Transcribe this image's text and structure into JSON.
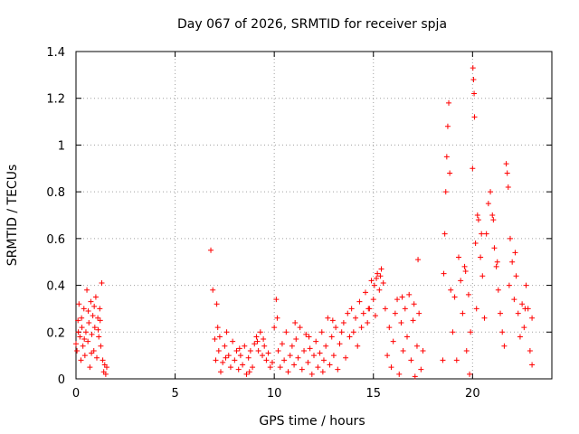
{
  "chart_data": {
    "type": "scatter",
    "title": "Day 067 of 2026, SRMTID for receiver spja",
    "xlabel": "GPS time / hours",
    "ylabel": "SRMTID / TECUs",
    "xlim": [
      0,
      24
    ],
    "ylim": [
      0,
      1.4
    ],
    "xticks": [
      0,
      5,
      10,
      15,
      20
    ],
    "xtick_labels": [
      "0",
      "5",
      "10",
      "15",
      "20"
    ],
    "yticks": [
      0,
      0.2,
      0.4,
      0.6,
      0.8,
      1.0,
      1.2,
      1.4
    ],
    "ytick_labels": [
      "0",
      "0.2",
      "0.4",
      "0.6",
      "0.8",
      "1",
      "1.2",
      "1.4"
    ],
    "grid": true,
    "marker": "plus",
    "color": "#ff0000",
    "series": [
      {
        "name": "SRMTID",
        "points": [
          [
            0.0,
            0.15
          ],
          [
            0.05,
            0.12
          ],
          [
            0.1,
            0.25
          ],
          [
            0.15,
            0.32
          ],
          [
            0.2,
            0.18
          ],
          [
            0.25,
            0.08
          ],
          [
            0.3,
            0.22
          ],
          [
            0.35,
            0.14
          ],
          [
            0.4,
            0.3
          ],
          [
            0.45,
            0.1
          ],
          [
            0.5,
            0.2
          ],
          [
            0.55,
            0.38
          ],
          [
            0.6,
            0.16
          ],
          [
            0.65,
            0.24
          ],
          [
            0.7,
            0.05
          ],
          [
            0.75,
            0.33
          ],
          [
            0.8,
            0.19
          ],
          [
            0.85,
            0.27
          ],
          [
            0.9,
            0.12
          ],
          [
            0.95,
            0.22
          ],
          [
            1.0,
            0.35
          ],
          [
            1.05,
            0.09
          ],
          [
            1.1,
            0.26
          ],
          [
            1.15,
            0.18
          ],
          [
            1.2,
            0.3
          ],
          [
            1.25,
            0.14
          ],
          [
            1.3,
            0.41
          ],
          [
            1.35,
            0.08
          ],
          [
            1.4,
            0.03
          ],
          [
            1.45,
            0.06
          ],
          [
            1.5,
            0.02
          ],
          [
            1.55,
            0.05
          ],
          [
            0.12,
            0.2
          ],
          [
            0.28,
            0.26
          ],
          [
            0.42,
            0.17
          ],
          [
            0.62,
            0.29
          ],
          [
            0.78,
            0.11
          ],
          [
            0.92,
            0.31
          ],
          [
            1.12,
            0.21
          ],
          [
            1.22,
            0.25
          ],
          [
            6.8,
            0.55
          ],
          [
            6.9,
            0.38
          ],
          [
            7.0,
            0.17
          ],
          [
            7.05,
            0.08
          ],
          [
            7.1,
            0.32
          ],
          [
            7.15,
            0.22
          ],
          [
            7.2,
            0.12
          ],
          [
            7.3,
            0.03
          ],
          [
            7.4,
            0.07
          ],
          [
            7.5,
            0.14
          ],
          [
            7.6,
            0.2
          ],
          [
            7.7,
            0.1
          ],
          [
            7.8,
            0.05
          ],
          [
            7.9,
            0.16
          ],
          [
            8.0,
            0.08
          ],
          [
            8.1,
            0.12
          ],
          [
            8.2,
            0.04
          ],
          [
            8.3,
            0.1
          ],
          [
            8.4,
            0.06
          ],
          [
            8.5,
            0.14
          ],
          [
            8.6,
            0.02
          ],
          [
            8.7,
            0.09
          ],
          [
            8.8,
            0.12
          ],
          [
            8.9,
            0.05
          ],
          [
            9.0,
            0.15
          ],
          [
            9.1,
            0.18
          ],
          [
            9.2,
            0.12
          ],
          [
            9.3,
            0.2
          ],
          [
            9.4,
            0.1
          ],
          [
            9.5,
            0.14
          ],
          [
            9.6,
            0.08
          ],
          [
            9.7,
            0.11
          ],
          [
            9.8,
            0.05
          ],
          [
            9.9,
            0.07
          ],
          [
            7.25,
            0.18
          ],
          [
            7.55,
            0.09
          ],
          [
            8.25,
            0.13
          ],
          [
            8.75,
            0.03
          ],
          [
            9.15,
            0.16
          ],
          [
            9.45,
            0.17
          ],
          [
            10.0,
            0.22
          ],
          [
            10.1,
            0.34
          ],
          [
            10.15,
            0.26
          ],
          [
            10.2,
            0.12
          ],
          [
            10.3,
            0.05
          ],
          [
            10.4,
            0.15
          ],
          [
            10.5,
            0.08
          ],
          [
            10.6,
            0.2
          ],
          [
            10.7,
            0.03
          ],
          [
            10.8,
            0.1
          ],
          [
            10.9,
            0.14
          ],
          [
            11.0,
            0.06
          ],
          [
            11.1,
            0.17
          ],
          [
            11.2,
            0.09
          ],
          [
            11.3,
            0.22
          ],
          [
            11.4,
            0.04
          ],
          [
            11.5,
            0.12
          ],
          [
            11.6,
            0.19
          ],
          [
            11.7,
            0.07
          ],
          [
            11.8,
            0.13
          ],
          [
            11.9,
            0.02
          ],
          [
            12.0,
            0.1
          ],
          [
            12.1,
            0.16
          ],
          [
            12.2,
            0.05
          ],
          [
            12.3,
            0.11
          ],
          [
            12.4,
            0.2
          ],
          [
            12.5,
            0.08
          ],
          [
            12.6,
            0.14
          ],
          [
            12.7,
            0.26
          ],
          [
            12.8,
            0.06
          ],
          [
            12.9,
            0.18
          ],
          [
            13.0,
            0.1
          ],
          [
            13.1,
            0.22
          ],
          [
            13.2,
            0.04
          ],
          [
            13.3,
            0.15
          ],
          [
            13.4,
            0.2
          ],
          [
            13.5,
            0.24
          ],
          [
            13.6,
            0.09
          ],
          [
            13.7,
            0.28
          ],
          [
            13.8,
            0.18
          ],
          [
            13.9,
            0.3
          ],
          [
            11.05,
            0.24
          ],
          [
            11.75,
            0.18
          ],
          [
            12.45,
            0.03
          ],
          [
            12.95,
            0.25
          ],
          [
            14.0,
            0.2
          ],
          [
            14.1,
            0.26
          ],
          [
            14.2,
            0.14
          ],
          [
            14.3,
            0.33
          ],
          [
            14.4,
            0.22
          ],
          [
            14.5,
            0.28
          ],
          [
            14.6,
            0.37
          ],
          [
            14.7,
            0.24
          ],
          [
            14.8,
            0.3
          ],
          [
            14.9,
            0.42
          ],
          [
            15.0,
            0.34
          ],
          [
            15.1,
            0.27
          ],
          [
            15.2,
            0.45
          ],
          [
            15.3,
            0.38
          ],
          [
            15.4,
            0.47
          ],
          [
            15.5,
            0.41
          ],
          [
            15.6,
            0.3
          ],
          [
            15.7,
            0.1
          ],
          [
            15.8,
            0.22
          ],
          [
            15.9,
            0.05
          ],
          [
            16.0,
            0.16
          ],
          [
            16.1,
            0.28
          ],
          [
            16.2,
            0.34
          ],
          [
            16.3,
            0.02
          ],
          [
            16.4,
            0.24
          ],
          [
            16.5,
            0.12
          ],
          [
            16.6,
            0.3
          ],
          [
            16.7,
            0.18
          ],
          [
            16.8,
            0.36
          ],
          [
            16.9,
            0.08
          ],
          [
            17.0,
            0.25
          ],
          [
            17.1,
            0.01
          ],
          [
            17.2,
            0.14
          ],
          [
            17.3,
            0.28
          ],
          [
            17.4,
            0.04
          ],
          [
            17.5,
            0.12
          ],
          [
            17.25,
            0.51
          ],
          [
            15.05,
            0.4
          ],
          [
            15.15,
            0.43
          ],
          [
            14.75,
            0.3
          ],
          [
            15.35,
            0.44
          ],
          [
            16.45,
            0.35
          ],
          [
            17.05,
            0.32
          ],
          [
            18.5,
            0.08
          ],
          [
            18.55,
            0.45
          ],
          [
            18.6,
            0.62
          ],
          [
            18.65,
            0.8
          ],
          [
            18.7,
            0.95
          ],
          [
            18.75,
            1.08
          ],
          [
            18.8,
            1.18
          ],
          [
            18.85,
            0.88
          ],
          [
            18.9,
            0.38
          ],
          [
            19.0,
            0.2
          ],
          [
            19.1,
            0.35
          ],
          [
            19.2,
            0.08
          ],
          [
            19.3,
            0.52
          ],
          [
            19.4,
            0.42
          ],
          [
            19.5,
            0.28
          ],
          [
            19.6,
            0.48
          ],
          [
            19.7,
            0.12
          ],
          [
            19.8,
            0.36
          ],
          [
            19.9,
            0.2
          ],
          [
            20.0,
            0.9
          ],
          [
            20.02,
            1.33
          ],
          [
            20.05,
            1.28
          ],
          [
            20.08,
            1.22
          ],
          [
            20.1,
            1.12
          ],
          [
            20.15,
            0.58
          ],
          [
            20.2,
            0.3
          ],
          [
            20.3,
            0.68
          ],
          [
            20.4,
            0.52
          ],
          [
            20.5,
            0.44
          ],
          [
            20.6,
            0.26
          ],
          [
            20.7,
            0.62
          ],
          [
            20.8,
            0.75
          ],
          [
            20.9,
            0.8
          ],
          [
            21.0,
            0.7
          ],
          [
            21.1,
            0.56
          ],
          [
            21.2,
            0.48
          ],
          [
            21.3,
            0.38
          ],
          [
            21.4,
            0.28
          ],
          [
            21.5,
            0.2
          ],
          [
            21.6,
            0.14
          ],
          [
            21.7,
            0.92
          ],
          [
            21.75,
            0.88
          ],
          [
            21.8,
            0.82
          ],
          [
            21.9,
            0.6
          ],
          [
            22.0,
            0.5
          ],
          [
            22.1,
            0.34
          ],
          [
            22.2,
            0.44
          ],
          [
            22.3,
            0.28
          ],
          [
            22.4,
            0.18
          ],
          [
            22.5,
            0.32
          ],
          [
            22.6,
            0.22
          ],
          [
            22.7,
            0.4
          ],
          [
            22.8,
            0.3
          ],
          [
            22.9,
            0.12
          ],
          [
            23.0,
            0.06
          ],
          [
            23.0,
            0.26
          ],
          [
            19.65,
            0.46
          ],
          [
            19.85,
            0.02
          ],
          [
            20.25,
            0.7
          ],
          [
            20.45,
            0.62
          ],
          [
            21.05,
            0.68
          ],
          [
            21.25,
            0.5
          ],
          [
            21.85,
            0.4
          ],
          [
            22.15,
            0.54
          ],
          [
            22.65,
            0.3
          ]
        ]
      }
    ]
  }
}
